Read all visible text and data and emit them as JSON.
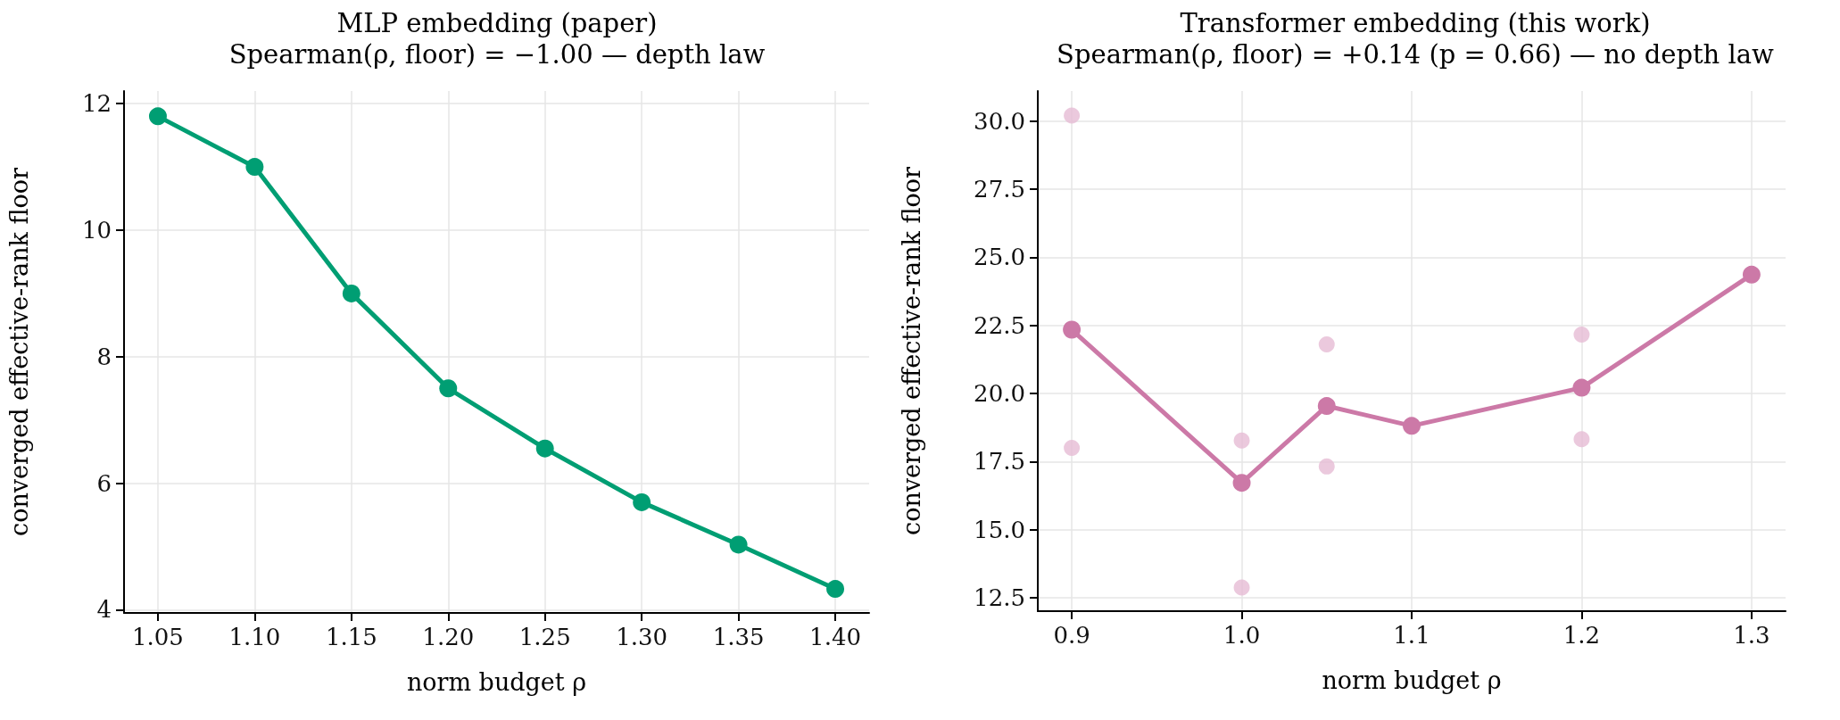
{
  "chart_data": [
    {
      "type": "line",
      "title": "MLP embedding (paper)",
      "subtitle": "Spearman(ρ, floor) = −1.00 — depth law",
      "xlabel": "norm budget ρ",
      "ylabel": "converged effective-rank floor",
      "x": [
        1.05,
        1.1,
        1.15,
        1.2,
        1.25,
        1.3,
        1.35,
        1.4
      ],
      "series": [
        {
          "color": "#009e73",
          "values": [
            11.8,
            11.0,
            9.0,
            7.5,
            6.55,
            5.7,
            5.03,
            4.33
          ]
        }
      ],
      "xlim": [
        1.0325,
        1.4175
      ],
      "ylim": [
        3.95,
        12.2
      ],
      "xticks": [
        1.05,
        {
          "value": 1.1,
          "label": "1.10"
        },
        1.15,
        {
          "value": 1.2,
          "label": "1.20"
        },
        1.25,
        {
          "value": 1.3,
          "label": "1.30"
        },
        1.35,
        {
          "value": 1.4,
          "label": "1.40"
        }
      ],
      "yticks": [
        4,
        6,
        8,
        10,
        12
      ],
      "grid": true,
      "marker": "circle"
    },
    {
      "type": "line",
      "title": "Transformer embedding (this work)",
      "subtitle": "Spearman(ρ, floor) = +0.14 (p = 0.66) — no depth law",
      "xlabel": "norm budget ρ",
      "ylabel": "converged effective-rank floor",
      "series": [
        {
          "type": "scatter",
          "color": "#e6bcd5",
          "x": [
            0.9,
            0.9,
            1.0,
            1.0,
            1.05,
            1.05,
            1.2,
            1.2
          ],
          "values": [
            30.2,
            18.0,
            18.27,
            12.88,
            21.8,
            17.32,
            22.16,
            18.32
          ]
        },
        {
          "color": "#cc79a7",
          "x": [
            0.9,
            1.0,
            1.05,
            1.1,
            1.2,
            1.3
          ],
          "values": [
            22.34,
            16.72,
            19.54,
            18.81,
            20.21,
            24.36
          ]
        }
      ],
      "xlim": [
        0.88,
        1.32
      ],
      "ylim": [
        12.01,
        31.1
      ],
      "xticks": [
        0.9,
        {
          "value": 1.0,
          "label": "1.0"
        },
        1.1,
        1.2,
        1.3
      ],
      "yticks": [
        {
          "value": 12.5,
          "label": "12.5"
        },
        {
          "value": 15,
          "label": "15.0"
        },
        {
          "value": 17.5,
          "label": "17.5"
        },
        {
          "value": 20,
          "label": "20.0"
        },
        {
          "value": 22.5,
          "label": "22.5"
        },
        {
          "value": 25,
          "label": "25.0"
        },
        {
          "value": 27.5,
          "label": "27.5"
        },
        {
          "value": 30,
          "label": "30.0"
        }
      ],
      "grid": true,
      "marker": "circle"
    }
  ]
}
